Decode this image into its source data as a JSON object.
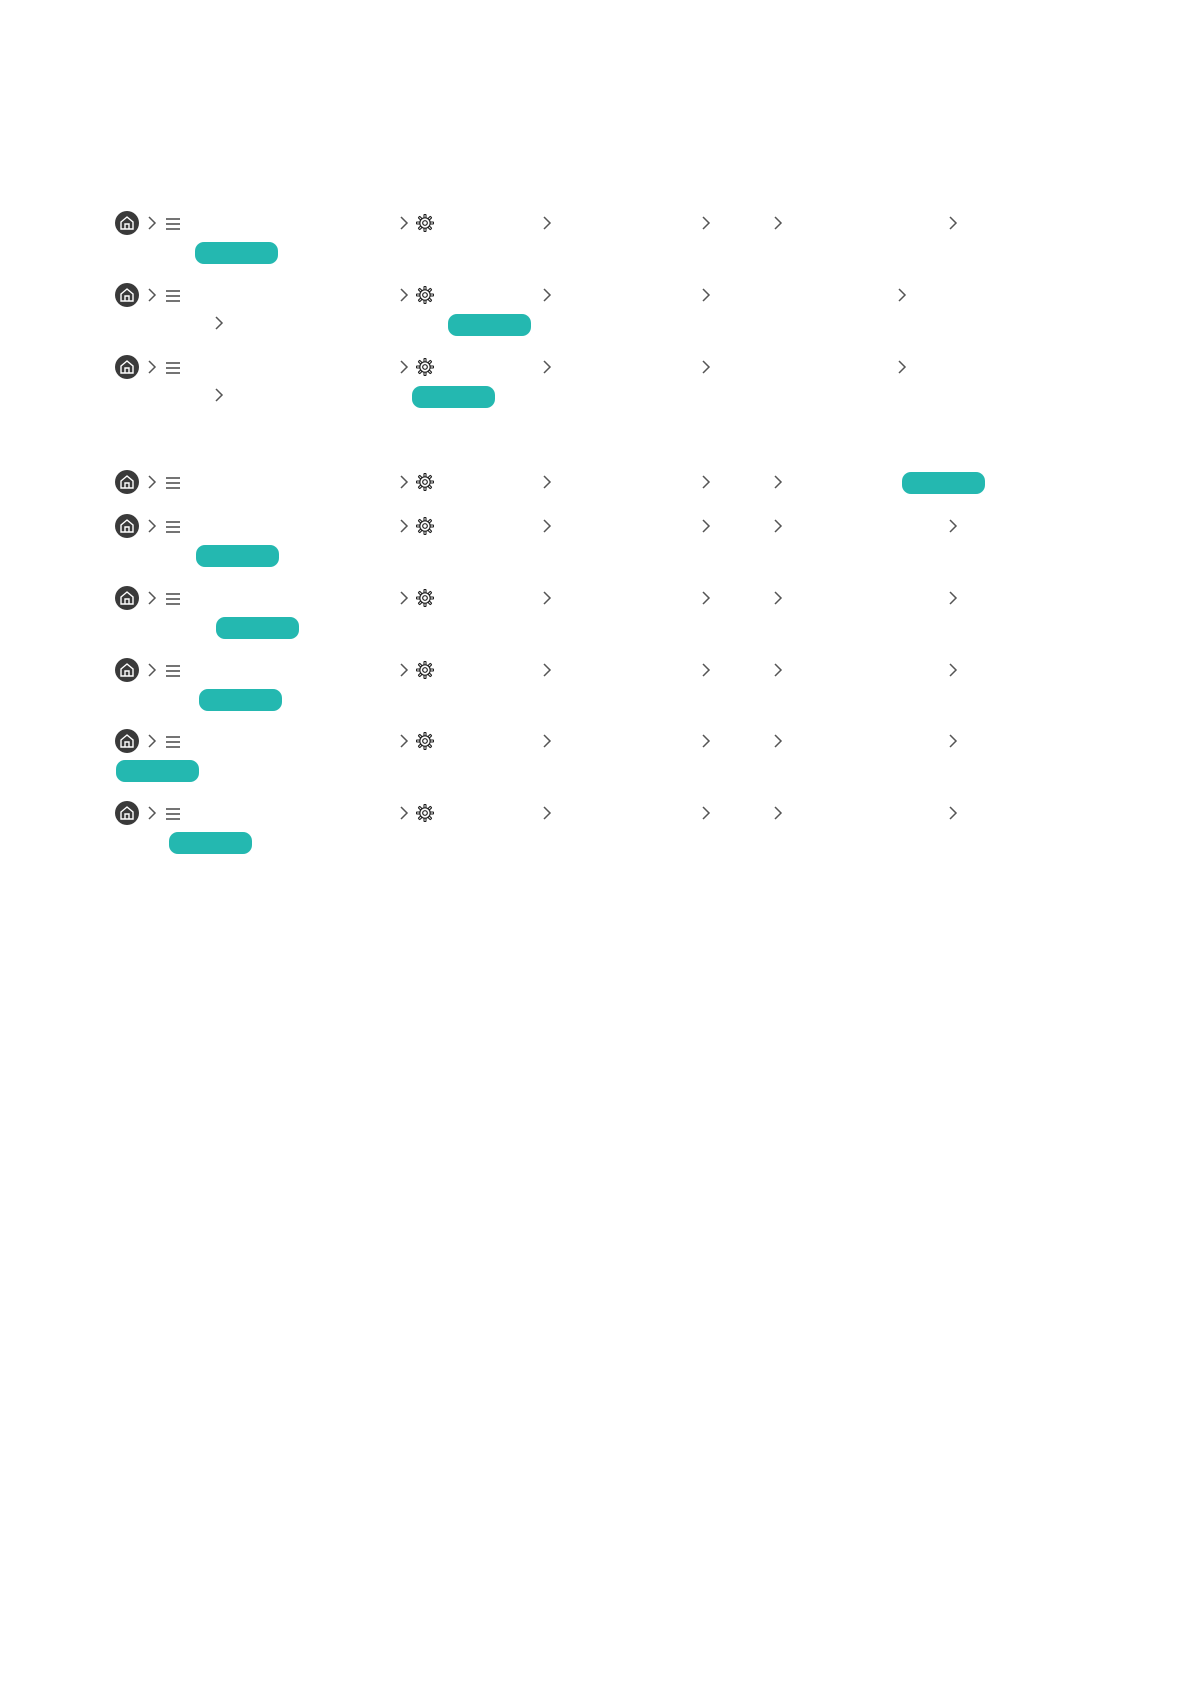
{
  "colors": {
    "highlight": "#24b8b0",
    "home_bg": "#3a3a3a",
    "chevron": "#555555"
  },
  "icons": {
    "home": "home-icon",
    "separator": "chevron-right-icon",
    "menu": "menu-icon",
    "settings": "gear-icon"
  },
  "paths": [
    {
      "label": "path-1"
    },
    {
      "label": "path-2"
    },
    {
      "label": "path-3"
    },
    {
      "label": "path-4"
    },
    {
      "label": "path-5"
    },
    {
      "label": "path-6"
    },
    {
      "label": "path-7"
    },
    {
      "label": "path-8"
    },
    {
      "label": "path-9"
    }
  ]
}
